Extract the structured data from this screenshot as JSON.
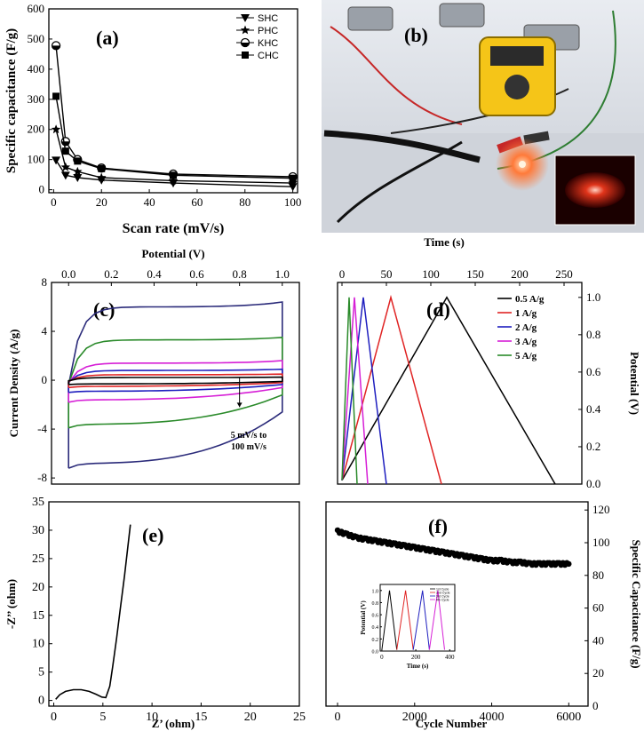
{
  "colors": {
    "black": "#000000",
    "red": "#e02424",
    "blue": "#1f1fbf",
    "magenta": "#d61fd6",
    "green": "#2a8a2a",
    "navy": "#2b2b7a"
  },
  "chart_data": [
    {
      "panel_label": "(a)",
      "type": "line",
      "xlabel": "Scan rate (mV/s)",
      "ylabel": "Specific capacitance (F/g)",
      "xlim": [
        -2,
        102
      ],
      "ylim": [
        -10,
        600
      ],
      "xticks": [
        "0",
        "20",
        "40",
        "60",
        "80",
        "100"
      ],
      "yticks": [
        "0",
        "100",
        "200",
        "300",
        "400",
        "500",
        "600"
      ],
      "legend_position": "top-right",
      "x": [
        1,
        5,
        10,
        20,
        50,
        100
      ],
      "series": [
        {
          "name": "SHC",
          "marker": "triangle-down",
          "values": [
            98,
            48,
            40,
            32,
            22,
            10
          ]
        },
        {
          "name": "PHC",
          "marker": "star",
          "values": [
            200,
            75,
            60,
            40,
            30,
            22
          ]
        },
        {
          "name": "KHC",
          "marker": "circle-half",
          "values": [
            478,
            160,
            100,
            72,
            52,
            43
          ]
        },
        {
          "name": "CHC",
          "marker": "square",
          "values": [
            310,
            128,
            95,
            70,
            48,
            38
          ]
        }
      ]
    },
    {
      "panel_label": "(c)",
      "type": "line",
      "xlabel": "Potential (V)",
      "ylabel": "Current Density (A/g)",
      "xlim": [
        -0.08,
        1.08
      ],
      "ylim": [
        -8.5,
        8
      ],
      "xticks": [
        "0.0",
        "0.2",
        "0.4",
        "0.6",
        "0.8",
        "1.0"
      ],
      "yticks": [
        "-8",
        "-4",
        "0",
        "4",
        "8"
      ],
      "annotation": [
        "5 mV/s to",
        "100 mV/s"
      ],
      "series": [
        {
          "color": "navy",
          "lower_start": -7.2,
          "lower_end": -2.6,
          "upper_start": -0.4,
          "upper_end": 6.4,
          "plateau_lower": -6.8,
          "plateau_upper": 6.0
        },
        {
          "color": "green",
          "lower_start": -3.9,
          "lower_end": -1.2,
          "upper_start": -0.3,
          "upper_end": 3.5,
          "plateau_lower": -3.6,
          "plateau_upper": 3.3
        },
        {
          "color": "magenta",
          "lower_start": -1.8,
          "lower_end": -0.6,
          "upper_start": -0.2,
          "upper_end": 1.6,
          "plateau_lower": -1.6,
          "plateau_upper": 1.4
        },
        {
          "color": "blue",
          "lower_start": -1.0,
          "lower_end": -0.35,
          "upper_start": -0.15,
          "upper_end": 0.9,
          "plateau_lower": -0.9,
          "plateau_upper": 0.8
        },
        {
          "color": "red",
          "lower_start": -0.6,
          "lower_end": -0.2,
          "upper_start": -0.1,
          "upper_end": 0.5,
          "plateau_lower": -0.5,
          "plateau_upper": 0.45
        },
        {
          "color": "black",
          "lower_start": -0.35,
          "lower_end": -0.1,
          "upper_start": -0.05,
          "upper_end": 0.25,
          "plateau_lower": -0.3,
          "plateau_upper": 0.22
        }
      ]
    },
    {
      "panel_label": "(d)",
      "type": "line",
      "xlabel": "Time (s)",
      "ylabel": "Potential (V)",
      "xlim": [
        -5,
        270
      ],
      "ylim": [
        0,
        1.08
      ],
      "xticks": [
        "0",
        "50",
        "100",
        "150",
        "200",
        "250"
      ],
      "yticks": [
        "0.0",
        "0.2",
        "0.4",
        "0.6",
        "0.8",
        "1.0"
      ],
      "legend_position": "top-right",
      "series": [
        {
          "name": "0.5 A/g",
          "color": "black",
          "peak": 118,
          "end": 240
        },
        {
          "name": "1 A/g",
          "color": "red",
          "peak": 55,
          "end": 112
        },
        {
          "name": "2 A/g",
          "color": "blue",
          "peak": 24,
          "end": 50
        },
        {
          "name": "3 A/g",
          "color": "magenta",
          "peak": 14,
          "end": 29
        },
        {
          "name": "5 A/g",
          "color": "green",
          "peak": 8,
          "end": 17
        }
      ]
    },
    {
      "panel_label": "(e)",
      "type": "line",
      "xlabel": "Z’ (ohm)",
      "ylabel": "-Z’’ (ohm)",
      "xlim": [
        -0.5,
        25
      ],
      "ylim": [
        -1,
        35
      ],
      "xticks": [
        "0",
        "5",
        "10",
        "15",
        "20",
        "25"
      ],
      "yticks": [
        "0",
        "5",
        "10",
        "15",
        "20",
        "25",
        "30",
        "35"
      ],
      "series": [
        {
          "x": [
            0.2,
            0.6,
            1.2,
            2.0,
            2.8,
            3.6,
            4.3,
            4.9,
            5.3,
            5.7,
            6.0,
            6.4,
            6.8,
            7.2,
            7.5,
            7.8
          ],
          "values": [
            0.2,
            1.0,
            1.6,
            1.9,
            1.9,
            1.6,
            1.1,
            0.6,
            0.5,
            2.5,
            6.0,
            11.0,
            16.5,
            22.0,
            26.5,
            31.0
          ]
        }
      ]
    },
    {
      "panel_label": "(f)",
      "type": "scatter",
      "xlabel": "Cycle Number",
      "ylabel": "Specific Capacitance (F/g)",
      "xlim": [
        -300,
        6500
      ],
      "ylim": [
        0,
        125
      ],
      "xticks": [
        "0",
        "2000",
        "4000",
        "6000"
      ],
      "yticks": [
        "0",
        "20",
        "40",
        "60",
        "80",
        "100",
        "120"
      ],
      "x": [
        0,
        250,
        500,
        750,
        1000,
        1250,
        1500,
        1750,
        2000,
        2250,
        2500,
        2750,
        3000,
        3250,
        3500,
        3750,
        4000,
        4250,
        4500,
        4750,
        5000,
        5250,
        5500,
        5750,
        6000
      ],
      "values": [
        107,
        105,
        103,
        102,
        101,
        100,
        99,
        98,
        97,
        96,
        95,
        94,
        93,
        92,
        91,
        90,
        89,
        89,
        88,
        88,
        87,
        87,
        87,
        87,
        87
      ]
    },
    {
      "panel_label": "(f) inset",
      "type": "line",
      "xlabel": "Time (s)",
      "ylabel": "Potential (V)",
      "xlim": [
        -10,
        430
      ],
      "ylim": [
        0,
        1.1
      ],
      "xticks": [
        "0",
        "200",
        "400"
      ],
      "yticks": [
        "0.0",
        "0.2",
        "0.4",
        "0.6",
        "0.8",
        "1.0"
      ],
      "legend": [
        "1st Cycle",
        "2nd Cycle",
        "3rd Cycle",
        "4th Cycle"
      ],
      "series": [
        {
          "color": "black",
          "start": 0,
          "peak": 45,
          "end": 88
        },
        {
          "color": "red",
          "start": 88,
          "peak": 140,
          "end": 185
        },
        {
          "color": "blue",
          "start": 185,
          "peak": 240,
          "end": 280
        },
        {
          "color": "magenta",
          "start": 280,
          "peak": 330,
          "end": 370
        }
      ]
    }
  ],
  "photo": {
    "panel_label": "(b)"
  }
}
